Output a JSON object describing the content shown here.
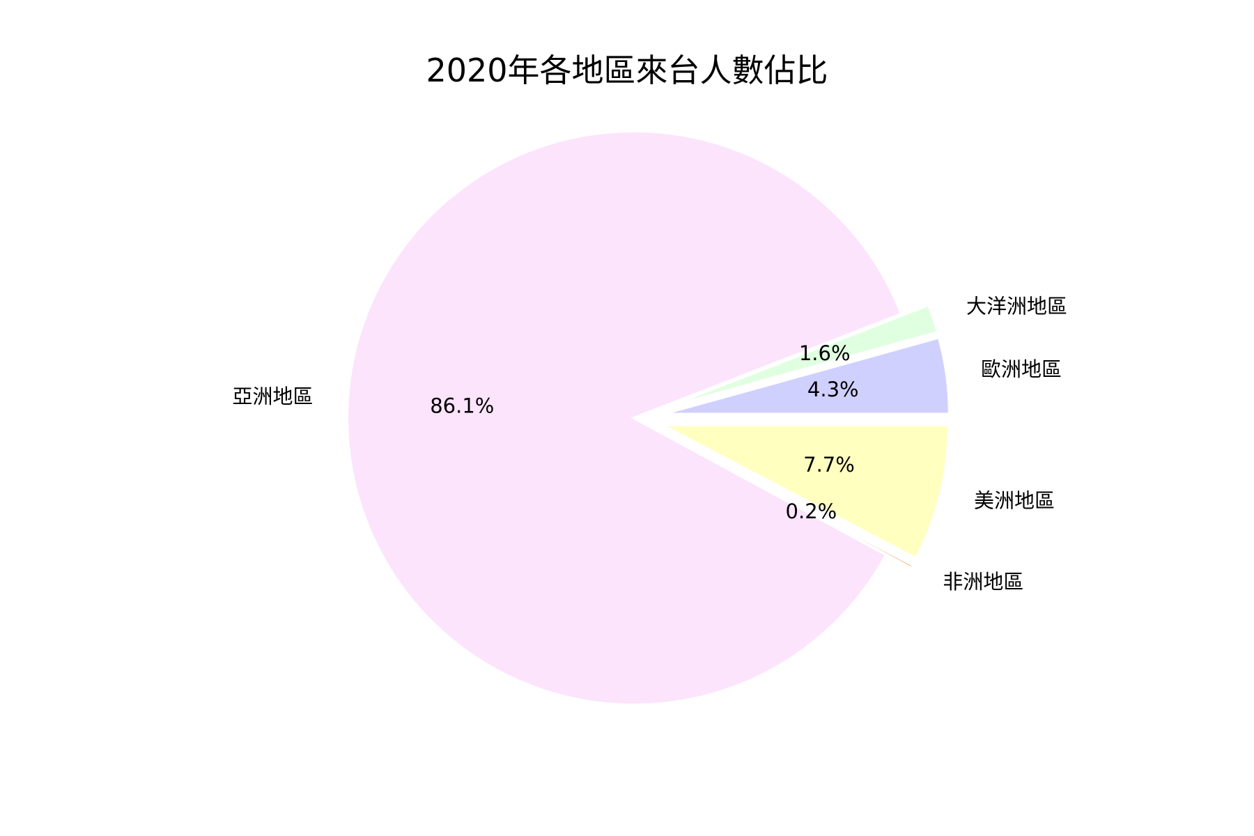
{
  "chart_data": {
    "type": "pie",
    "title": "2020年各地區來台人數佔比",
    "start_angle_deg": 0,
    "direction": "counterclockwise",
    "slices": [
      {
        "label": "歐洲地區",
        "value": 4.3,
        "pct_label": "4.3%",
        "color": "#D0D0FF",
        "exploded": true
      },
      {
        "label": "大洋洲地區",
        "value": 1.6,
        "pct_label": "1.6%",
        "color": "#E0FFE0",
        "exploded": true
      },
      {
        "label": "亞洲地區",
        "value": 86.1,
        "pct_label": "86.1%",
        "color": "#FCE4FC",
        "exploded": false
      },
      {
        "label": "非洲地區",
        "value": 0.2,
        "pct_label": "0.2%",
        "color": "#F4B886",
        "exploded": true
      },
      {
        "label": "美洲地區",
        "value": 7.7,
        "pct_label": "7.7%",
        "color": "#FFFFC0",
        "exploded": true
      }
    ]
  }
}
